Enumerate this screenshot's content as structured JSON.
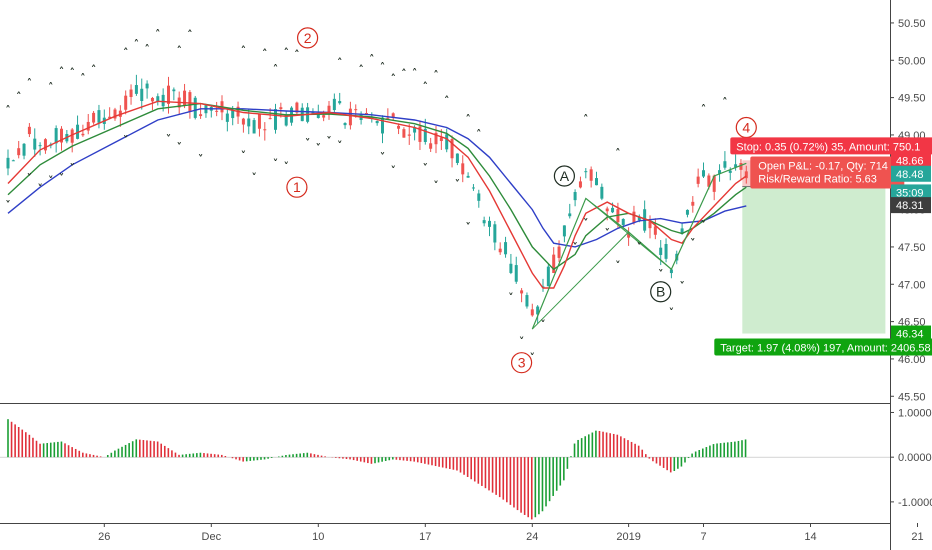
{
  "colors": {
    "up": "#26a69a",
    "down": "#ef5350",
    "osc_up": "#1a9e34",
    "osc_down": "#e0303a",
    "ma_fast": "#e53935",
    "ma_mid": "#2e8b3a",
    "ma_slow": "#2f3fc7",
    "wave_red": "#d52b1e",
    "wave_dark": "#1f2d22",
    "stop_zone": "#f9c9c9",
    "target_zone": "#cfeccf",
    "stop_box": "#f23645",
    "target_box": "#0fa40f",
    "pnl_box": "#ef5350"
  },
  "chart_data": {
    "type": "line",
    "price_axis": {
      "ylim": [
        45.45,
        50.7
      ],
      "ticks": [
        "50.50",
        "50.00",
        "49.50",
        "49.00",
        "48.50",
        "48.00",
        "47.50",
        "47.00",
        "46.50",
        "46.00",
        "45.50"
      ],
      "tick_values": [
        50.5,
        50.0,
        49.5,
        49.0,
        48.5,
        48.0,
        47.5,
        47.0,
        46.5,
        46.0,
        45.5
      ],
      "price_tags": [
        {
          "label": "48.66",
          "value": 48.66,
          "style": "red"
        },
        {
          "label": "48.48",
          "value": 48.48,
          "style": "teal"
        },
        {
          "label": "35:09",
          "value": 48.23,
          "style": "teal"
        },
        {
          "label": "48.31",
          "value": 48.06,
          "style": "dark"
        },
        {
          "label": "46.34",
          "value": 46.34,
          "style": "green"
        }
      ]
    },
    "osc_axis": {
      "ylim": [
        -1.45,
        1.1
      ],
      "ticks": [
        "1.0000",
        "0.0000",
        "-1.0000"
      ],
      "tick_values": [
        1.0,
        0.0,
        -1.0
      ]
    },
    "x_ticks": [
      {
        "label": "26",
        "x": 9
      },
      {
        "label": "Dec",
        "x": 19
      },
      {
        "label": "10",
        "x": 29
      },
      {
        "label": "17",
        "x": 39
      },
      {
        "label": "24",
        "x": 49
      },
      {
        "label": "2019",
        "x": 58
      },
      {
        "label": "7",
        "x": 65
      },
      {
        "label": "14",
        "x": 75
      },
      {
        "label": "21",
        "x": 85
      }
    ],
    "bar_range": [
      0,
      89
    ],
    "price_series": [
      {
        "x": 0,
        "y": 48.6
      },
      {
        "x": 2,
        "y": 48.95
      },
      {
        "x": 4,
        "y": 48.9
      },
      {
        "x": 6,
        "y": 49.05
      },
      {
        "x": 8,
        "y": 49.15
      },
      {
        "x": 10,
        "y": 49.3
      },
      {
        "x": 12,
        "y": 49.55
      },
      {
        "x": 14,
        "y": 49.55
      },
      {
        "x": 16,
        "y": 49.5
      },
      {
        "x": 18,
        "y": 49.35
      },
      {
        "x": 20,
        "y": 49.3
      },
      {
        "x": 22,
        "y": 49.2
      },
      {
        "x": 24,
        "y": 49.15
      },
      {
        "x": 26,
        "y": 49.25
      },
      {
        "x": 28,
        "y": 49.3
      },
      {
        "x": 30,
        "y": 49.35
      },
      {
        "x": 32,
        "y": 49.25
      },
      {
        "x": 34,
        "y": 49.2
      },
      {
        "x": 36,
        "y": 49.15
      },
      {
        "x": 38,
        "y": 49.05
      },
      {
        "x": 40,
        "y": 48.95
      },
      {
        "x": 42,
        "y": 48.75
      },
      {
        "x": 43,
        "y": 48.5
      },
      {
        "x": 44,
        "y": 48.15
      },
      {
        "x": 45,
        "y": 47.8
      },
      {
        "x": 46,
        "y": 47.55
      },
      {
        "x": 47,
        "y": 47.3
      },
      {
        "x": 48,
        "y": 46.9
      },
      {
        "x": 49,
        "y": 46.55
      },
      {
        "x": 50,
        "y": 46.9
      },
      {
        "x": 51,
        "y": 47.3
      },
      {
        "x": 52,
        "y": 47.7
      },
      {
        "x": 53,
        "y": 48.15
      },
      {
        "x": 54,
        "y": 48.45
      },
      {
        "x": 55,
        "y": 48.35
      },
      {
        "x": 56,
        "y": 48.1
      },
      {
        "x": 57,
        "y": 47.85
      },
      {
        "x": 58,
        "y": 47.7
      },
      {
        "x": 59,
        "y": 47.95
      },
      {
        "x": 60,
        "y": 47.8
      },
      {
        "x": 61,
        "y": 47.55
      },
      {
        "x": 62,
        "y": 47.3
      },
      {
        "x": 63,
        "y": 47.65
      },
      {
        "x": 64,
        "y": 48.2
      },
      {
        "x": 65,
        "y": 48.45
      },
      {
        "x": 66,
        "y": 48.35
      },
      {
        "x": 67,
        "y": 48.6
      },
      {
        "x": 68,
        "y": 48.7
      },
      {
        "x": 69,
        "y": 48.5
      }
    ],
    "ma_fast": [
      {
        "x": 0,
        "y": 48.35
      },
      {
        "x": 3,
        "y": 48.8
      },
      {
        "x": 6,
        "y": 49.0
      },
      {
        "x": 10,
        "y": 49.25
      },
      {
        "x": 14,
        "y": 49.45
      },
      {
        "x": 18,
        "y": 49.42
      },
      {
        "x": 22,
        "y": 49.3
      },
      {
        "x": 26,
        "y": 49.25
      },
      {
        "x": 30,
        "y": 49.3
      },
      {
        "x": 34,
        "y": 49.22
      },
      {
        "x": 38,
        "y": 49.1
      },
      {
        "x": 41,
        "y": 48.95
      },
      {
        "x": 43,
        "y": 48.7
      },
      {
        "x": 45,
        "y": 48.25
      },
      {
        "x": 47,
        "y": 47.7
      },
      {
        "x": 49,
        "y": 47.15
      },
      {
        "x": 50,
        "y": 46.95
      },
      {
        "x": 51,
        "y": 46.95
      },
      {
        "x": 52,
        "y": 47.25
      },
      {
        "x": 53,
        "y": 47.65
      },
      {
        "x": 54,
        "y": 47.95
      },
      {
        "x": 56,
        "y": 48.1
      },
      {
        "x": 58,
        "y": 47.95
      },
      {
        "x": 60,
        "y": 47.85
      },
      {
        "x": 62,
        "y": 47.6
      },
      {
        "x": 63,
        "y": 47.55
      },
      {
        "x": 64,
        "y": 47.75
      },
      {
        "x": 66,
        "y": 48.05
      },
      {
        "x": 68,
        "y": 48.35
      },
      {
        "x": 69,
        "y": 48.45
      }
    ],
    "ma_mid": [
      {
        "x": 0,
        "y": 48.2
      },
      {
        "x": 3,
        "y": 48.6
      },
      {
        "x": 6,
        "y": 48.85
      },
      {
        "x": 10,
        "y": 49.1
      },
      {
        "x": 14,
        "y": 49.35
      },
      {
        "x": 18,
        "y": 49.42
      },
      {
        "x": 22,
        "y": 49.33
      },
      {
        "x": 26,
        "y": 49.27
      },
      {
        "x": 30,
        "y": 49.28
      },
      {
        "x": 34,
        "y": 49.24
      },
      {
        "x": 38,
        "y": 49.15
      },
      {
        "x": 41,
        "y": 49.02
      },
      {
        "x": 43,
        "y": 48.82
      },
      {
        "x": 45,
        "y": 48.45
      },
      {
        "x": 47,
        "y": 48.0
      },
      {
        "x": 49,
        "y": 47.5
      },
      {
        "x": 51,
        "y": 47.2
      },
      {
        "x": 53,
        "y": 47.4
      },
      {
        "x": 54,
        "y": 47.65
      },
      {
        "x": 56,
        "y": 47.9
      },
      {
        "x": 58,
        "y": 47.95
      },
      {
        "x": 60,
        "y": 47.85
      },
      {
        "x": 62,
        "y": 47.72
      },
      {
        "x": 63,
        "y": 47.68
      },
      {
        "x": 64,
        "y": 47.75
      },
      {
        "x": 66,
        "y": 47.95
      },
      {
        "x": 68,
        "y": 48.2
      },
      {
        "x": 69,
        "y": 48.3
      }
    ],
    "ma_slow": [
      {
        "x": 0,
        "y": 47.95
      },
      {
        "x": 3,
        "y": 48.3
      },
      {
        "x": 6,
        "y": 48.6
      },
      {
        "x": 10,
        "y": 48.9
      },
      {
        "x": 14,
        "y": 49.2
      },
      {
        "x": 18,
        "y": 49.35
      },
      {
        "x": 22,
        "y": 49.35
      },
      {
        "x": 26,
        "y": 49.32
      },
      {
        "x": 30,
        "y": 49.3
      },
      {
        "x": 34,
        "y": 49.27
      },
      {
        "x": 38,
        "y": 49.2
      },
      {
        "x": 41,
        "y": 49.1
      },
      {
        "x": 43,
        "y": 48.95
      },
      {
        "x": 45,
        "y": 48.7
      },
      {
        "x": 47,
        "y": 48.35
      },
      {
        "x": 49,
        "y": 48.0
      },
      {
        "x": 50,
        "y": 47.75
      },
      {
        "x": 51,
        "y": 47.55
      },
      {
        "x": 53,
        "y": 47.5
      },
      {
        "x": 55,
        "y": 47.6
      },
      {
        "x": 57,
        "y": 47.75
      },
      {
        "x": 59,
        "y": 47.85
      },
      {
        "x": 61,
        "y": 47.88
      },
      {
        "x": 63,
        "y": 47.82
      },
      {
        "x": 65,
        "y": 47.85
      },
      {
        "x": 67,
        "y": 47.98
      },
      {
        "x": 69,
        "y": 48.05
      }
    ],
    "oscillator_levels": [
      {
        "x": 0,
        "y": 0.85
      },
      {
        "x": 2,
        "y": 0.5
      },
      {
        "x": 3,
        "y": 0.3
      },
      {
        "x": 5,
        "y": 0.35
      },
      {
        "x": 7,
        "y": 0.1
      },
      {
        "x": 9,
        "y": 0.0
      },
      {
        "x": 10,
        "y": 0.15
      },
      {
        "x": 12,
        "y": 0.4
      },
      {
        "x": 14,
        "y": 0.35
      },
      {
        "x": 16,
        "y": 0.05
      },
      {
        "x": 18,
        "y": 0.1
      },
      {
        "x": 20,
        "y": 0.05
      },
      {
        "x": 22,
        "y": -0.1
      },
      {
        "x": 24,
        "y": -0.05
      },
      {
        "x": 26,
        "y": 0.05
      },
      {
        "x": 28,
        "y": 0.1
      },
      {
        "x": 30,
        "y": 0.0
      },
      {
        "x": 32,
        "y": -0.05
      },
      {
        "x": 34,
        "y": -0.15
      },
      {
        "x": 36,
        "y": -0.05
      },
      {
        "x": 38,
        "y": -0.1
      },
      {
        "x": 40,
        "y": -0.2
      },
      {
        "x": 42,
        "y": -0.3
      },
      {
        "x": 44,
        "y": -0.6
      },
      {
        "x": 46,
        "y": -0.9
      },
      {
        "x": 48,
        "y": -1.25
      },
      {
        "x": 49,
        "y": -1.4
      },
      {
        "x": 50,
        "y": -1.2
      },
      {
        "x": 52,
        "y": -0.5
      },
      {
        "x": 53,
        "y": 0.35
      },
      {
        "x": 55,
        "y": 0.6
      },
      {
        "x": 57,
        "y": 0.5
      },
      {
        "x": 59,
        "y": 0.25
      },
      {
        "x": 60,
        "y": -0.05
      },
      {
        "x": 62,
        "y": -0.35
      },
      {
        "x": 63,
        "y": -0.2
      },
      {
        "x": 64,
        "y": 0.1
      },
      {
        "x": 66,
        "y": 0.3
      },
      {
        "x": 68,
        "y": 0.35
      },
      {
        "x": 69,
        "y": 0.4
      }
    ],
    "fractal_up_x": [
      0,
      1,
      2,
      4,
      5,
      6,
      7,
      8,
      11,
      12,
      13,
      14,
      16,
      17,
      22,
      24,
      25,
      26,
      27,
      31,
      33,
      34,
      35,
      36,
      37,
      38,
      39,
      40,
      41,
      43,
      44,
      54,
      57,
      65,
      67
    ],
    "fractal_down_x": [
      0,
      2,
      3,
      4,
      5,
      6,
      11,
      15,
      16,
      18,
      22,
      23,
      25,
      26,
      28,
      29,
      30,
      31,
      35,
      36,
      39,
      40,
      42,
      43,
      47,
      48,
      49,
      50,
      53,
      54,
      56,
      57,
      59,
      61,
      62,
      63,
      64,
      65
    ],
    "wave_labels": [
      {
        "label": "1",
        "x": 27,
        "y": 48.3
      },
      {
        "label": "2",
        "x": 28,
        "y": 50.3
      },
      {
        "label": "3",
        "x": 48,
        "y": 45.95
      },
      {
        "label": "4",
        "x": 69,
        "y": 49.1
      },
      {
        "label": "A",
        "x": 52,
        "y": 48.45
      },
      {
        "label": "B",
        "x": 61,
        "y": 46.9
      }
    ],
    "pattern_path": [
      {
        "x": 49,
        "y": 46.4
      },
      {
        "x": 54,
        "y": 48.15
      },
      {
        "x": 58,
        "y": 47.7
      },
      {
        "x": 62,
        "y": 47.2
      },
      {
        "x": 66,
        "y": 48.45
      },
      {
        "x": 69,
        "y": 48.62
      }
    ],
    "position": {
      "x_start": 69,
      "x_end": 82,
      "entry": 48.31,
      "stop": 48.66,
      "target": 46.34,
      "stop_label": "Stop: 0.35 (0.72%) 35, Amount: 750.1",
      "pnl_label": "Open P&L: -0.17, Qty: 714",
      "rr_label": "Risk/Reward Ratio: 5.63",
      "target_label": "Target: 1.97 (4.08%) 197, Amount: 2406.58"
    }
  }
}
